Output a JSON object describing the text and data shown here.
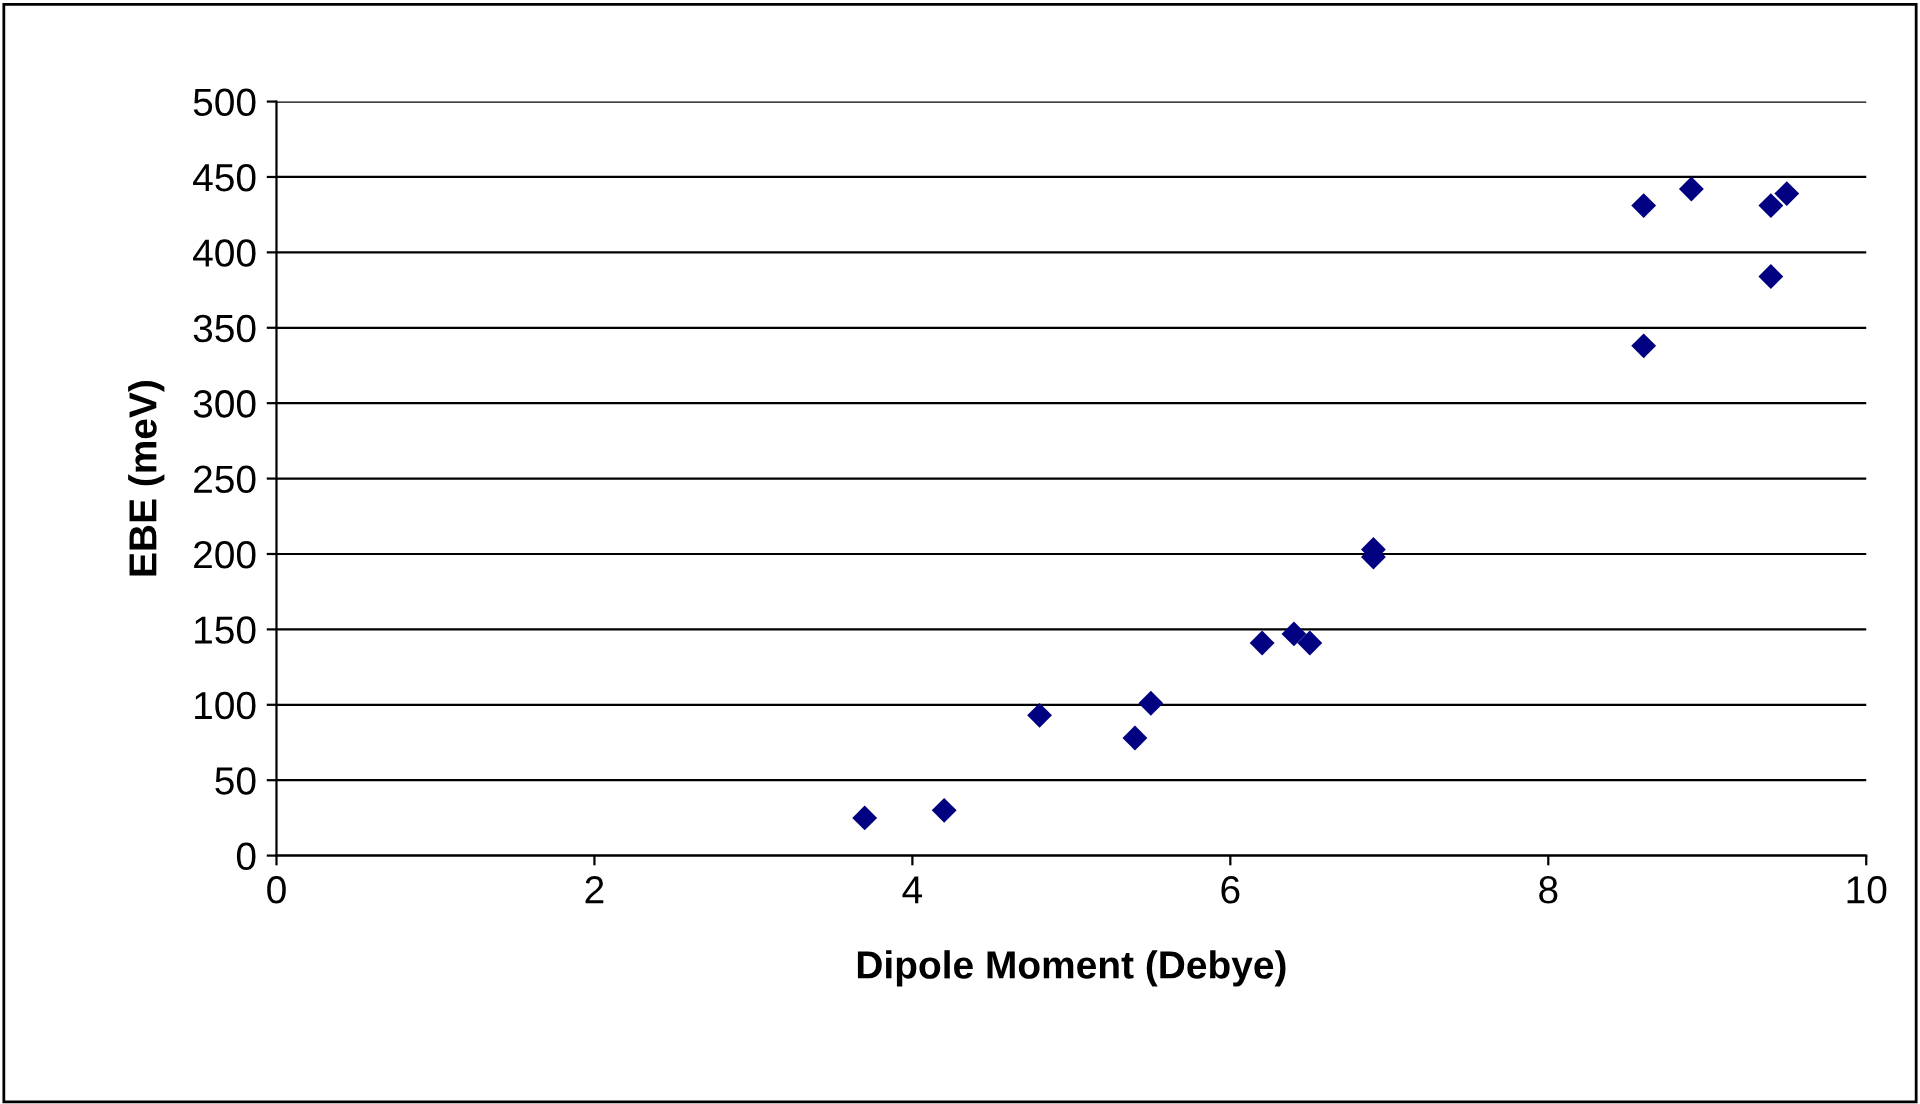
{
  "chart_data": {
    "type": "scatter",
    "xlabel": "Dipole Moment (Debye)",
    "ylabel": "EBE (meV)",
    "x": [
      3.7,
      4.2,
      4.8,
      5.4,
      5.5,
      6.2,
      6.4,
      6.5,
      6.9,
      6.9,
      8.6,
      8.6,
      8.9,
      9.4,
      9.4,
      9.5
    ],
    "values": [
      25,
      30,
      93,
      78,
      101,
      141,
      147,
      141,
      203,
      198,
      338,
      431,
      442,
      384,
      431,
      439
    ],
    "color": "#000080",
    "marker": "diamond",
    "xlim": [
      0,
      10
    ],
    "xticks": [
      0,
      2,
      4,
      6,
      8,
      10
    ],
    "ylim": [
      0,
      500
    ],
    "yticks": [
      0,
      50,
      100,
      150,
      200,
      250,
      300,
      350,
      400,
      450,
      500
    ],
    "grid": "y",
    "legend": false
  }
}
